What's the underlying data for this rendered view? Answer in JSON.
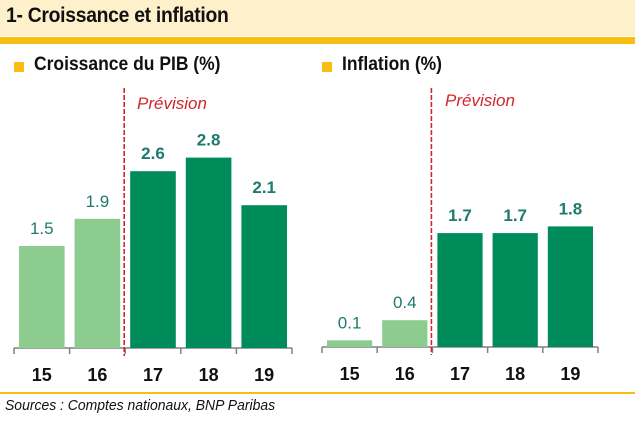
{
  "title": "1- Croissance et inflation",
  "source": "Sources : Comptes nationaux, BNP Paribas",
  "colors": {
    "accent": "#f9bd14",
    "title_band": "#fff0cc",
    "actual_bar": "#8ccd8f",
    "forecast_bar": "#008c5a",
    "label_text": "#1f7a6e",
    "forecast_line": "#d0262c",
    "axis": "#808080"
  },
  "chart_data": [
    {
      "type": "bar",
      "title": "Croissance du PIB (%)",
      "categories": [
        "15",
        "16",
        "17",
        "18",
        "19"
      ],
      "values": [
        1.5,
        1.9,
        2.6,
        2.8,
        2.1
      ],
      "labels": [
        "1.5",
        "1.9",
        "2.6",
        "2.8",
        "2.1"
      ],
      "forecast": [
        false,
        false,
        true,
        true,
        true
      ],
      "annotation": "Prévision",
      "annotation_after_category": "16",
      "xlabel": "",
      "ylabel": "",
      "ylim": [
        0,
        2.8
      ],
      "grid": false,
      "legend": "none"
    },
    {
      "type": "bar",
      "title": "Inflation (%)",
      "categories": [
        "15",
        "16",
        "17",
        "18",
        "19"
      ],
      "values": [
        0.1,
        0.4,
        1.7,
        1.7,
        1.8
      ],
      "labels": [
        "0.1",
        "0.4",
        "1.7",
        "1.7",
        "1.8"
      ],
      "forecast": [
        false,
        false,
        true,
        true,
        true
      ],
      "annotation": "Prévision",
      "annotation_after_category": "16",
      "xlabel": "",
      "ylabel": "",
      "ylim": [
        0,
        1.8
      ],
      "grid": false,
      "legend": "none"
    }
  ]
}
